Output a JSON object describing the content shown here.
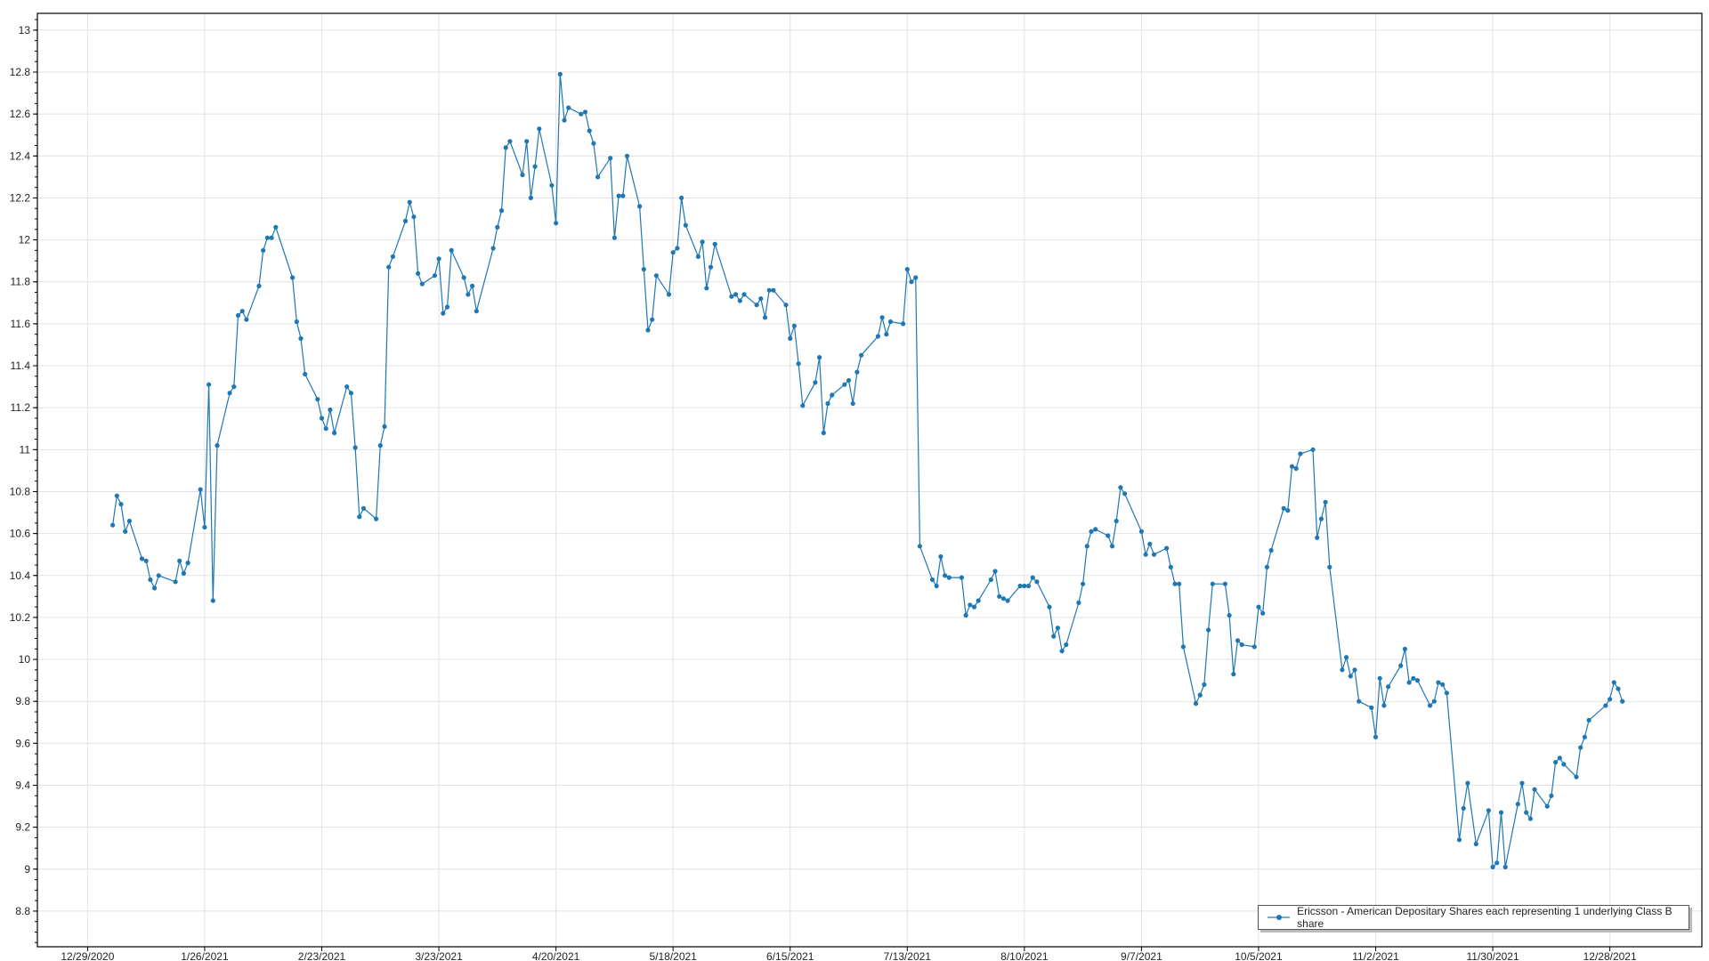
{
  "chart_data": {
    "type": "line",
    "title": "",
    "xlabel": "",
    "ylabel": "",
    "ylim": [
      8.63,
      13.08
    ],
    "xlim": [
      "2020-12-17",
      "2022-01-19"
    ],
    "grid": true,
    "legend_placement": "bottom-right",
    "line_color": "#1f77b4",
    "marker": "circle",
    "y_ticks": [
      "8.8",
      "9",
      "9.2",
      "9.4",
      "9.6",
      "9.8",
      "10",
      "10.2",
      "10.4",
      "10.6",
      "10.8",
      "11",
      "11.2",
      "11.4",
      "11.6",
      "11.8",
      "12",
      "12.2",
      "12.4",
      "12.6",
      "12.8",
      "13"
    ],
    "x_ticks": [
      "12/29/2020",
      "1/26/2021",
      "2/23/2021",
      "3/23/2021",
      "4/20/2021",
      "5/18/2021",
      "6/15/2021",
      "7/13/2021",
      "8/10/2021",
      "9/7/2021",
      "10/5/2021",
      "11/2/2021",
      "11/30/2021",
      "12/28/2021"
    ],
    "series": [
      {
        "name": "Ericsson - American Depositary Shares each representing 1 underlying Class B share",
        "x": [
          "2021-01-04",
          "2021-01-05",
          "2021-01-06",
          "2021-01-07",
          "2021-01-08",
          "2021-01-11",
          "2021-01-12",
          "2021-01-13",
          "2021-01-14",
          "2021-01-15",
          "2021-01-19",
          "2021-01-20",
          "2021-01-21",
          "2021-01-22",
          "2021-01-25",
          "2021-01-26",
          "2021-01-27",
          "2021-01-28",
          "2021-01-29",
          "2021-02-01",
          "2021-02-02",
          "2021-02-03",
          "2021-02-04",
          "2021-02-05",
          "2021-02-08",
          "2021-02-09",
          "2021-02-10",
          "2021-02-11",
          "2021-02-12",
          "2021-02-16",
          "2021-02-17",
          "2021-02-18",
          "2021-02-19",
          "2021-02-22",
          "2021-02-23",
          "2021-02-24",
          "2021-02-25",
          "2021-02-26",
          "2021-03-01",
          "2021-03-02",
          "2021-03-03",
          "2021-03-04",
          "2021-03-05",
          "2021-03-08",
          "2021-03-09",
          "2021-03-10",
          "2021-03-11",
          "2021-03-12",
          "2021-03-15",
          "2021-03-16",
          "2021-03-17",
          "2021-03-18",
          "2021-03-19",
          "2021-03-22",
          "2021-03-23",
          "2021-03-24",
          "2021-03-25",
          "2021-03-26",
          "2021-03-29",
          "2021-03-30",
          "2021-03-31",
          "2021-04-01",
          "2021-04-05",
          "2021-04-06",
          "2021-04-07",
          "2021-04-08",
          "2021-04-09",
          "2021-04-12",
          "2021-04-13",
          "2021-04-14",
          "2021-04-15",
          "2021-04-16",
          "2021-04-19",
          "2021-04-20",
          "2021-04-21",
          "2021-04-22",
          "2021-04-23",
          "2021-04-26",
          "2021-04-27",
          "2021-04-28",
          "2021-04-29",
          "2021-04-30",
          "2021-05-03",
          "2021-05-04",
          "2021-05-05",
          "2021-05-06",
          "2021-05-07",
          "2021-05-10",
          "2021-05-11",
          "2021-05-12",
          "2021-05-13",
          "2021-05-14",
          "2021-05-17",
          "2021-05-18",
          "2021-05-19",
          "2021-05-20",
          "2021-05-21",
          "2021-05-24",
          "2021-05-25",
          "2021-05-26",
          "2021-05-27",
          "2021-05-28",
          "2021-06-01",
          "2021-06-02",
          "2021-06-03",
          "2021-06-04",
          "2021-06-07",
          "2021-06-08",
          "2021-06-09",
          "2021-06-10",
          "2021-06-11",
          "2021-06-14",
          "2021-06-15",
          "2021-06-16",
          "2021-06-17",
          "2021-06-18",
          "2021-06-21",
          "2021-06-22",
          "2021-06-23",
          "2021-06-24",
          "2021-06-25",
          "2021-06-28",
          "2021-06-29",
          "2021-06-30",
          "2021-07-01",
          "2021-07-02",
          "2021-07-06",
          "2021-07-07",
          "2021-07-08",
          "2021-07-09",
          "2021-07-12",
          "2021-07-13",
          "2021-07-14",
          "2021-07-15",
          "2021-07-16",
          "2021-07-19",
          "2021-07-20",
          "2021-07-21",
          "2021-07-22",
          "2021-07-23",
          "2021-07-26",
          "2021-07-27",
          "2021-07-28",
          "2021-07-29",
          "2021-07-30",
          "2021-08-02",
          "2021-08-03",
          "2021-08-04",
          "2021-08-05",
          "2021-08-06",
          "2021-08-09",
          "2021-08-10",
          "2021-08-11",
          "2021-08-12",
          "2021-08-13",
          "2021-08-16",
          "2021-08-17",
          "2021-08-18",
          "2021-08-19",
          "2021-08-20",
          "2021-08-23",
          "2021-08-24",
          "2021-08-25",
          "2021-08-26",
          "2021-08-27",
          "2021-08-30",
          "2021-08-31",
          "2021-09-01",
          "2021-09-02",
          "2021-09-03",
          "2021-09-07",
          "2021-09-08",
          "2021-09-09",
          "2021-09-10",
          "2021-09-13",
          "2021-09-14",
          "2021-09-15",
          "2021-09-16",
          "2021-09-17",
          "2021-09-20",
          "2021-09-21",
          "2021-09-22",
          "2021-09-23",
          "2021-09-24",
          "2021-09-27",
          "2021-09-28",
          "2021-09-29",
          "2021-09-30",
          "2021-10-01",
          "2021-10-04",
          "2021-10-05",
          "2021-10-06",
          "2021-10-07",
          "2021-10-08",
          "2021-10-11",
          "2021-10-12",
          "2021-10-13",
          "2021-10-14",
          "2021-10-15",
          "2021-10-18",
          "2021-10-19",
          "2021-10-20",
          "2021-10-21",
          "2021-10-22",
          "2021-10-25",
          "2021-10-26",
          "2021-10-27",
          "2021-10-28",
          "2021-10-29",
          "2021-11-01",
          "2021-11-02",
          "2021-11-03",
          "2021-11-04",
          "2021-11-05",
          "2021-11-08",
          "2021-11-09",
          "2021-11-10",
          "2021-11-11",
          "2021-11-12",
          "2021-11-15",
          "2021-11-16",
          "2021-11-17",
          "2021-11-18",
          "2021-11-19",
          "2021-11-22",
          "2021-11-23",
          "2021-11-24",
          "2021-11-26",
          "2021-11-29",
          "2021-11-30",
          "2021-12-01",
          "2021-12-02",
          "2021-12-03",
          "2021-12-06",
          "2021-12-07",
          "2021-12-08",
          "2021-12-09",
          "2021-12-10",
          "2021-12-13",
          "2021-12-14",
          "2021-12-15",
          "2021-12-16",
          "2021-12-17",
          "2021-12-20",
          "2021-12-21",
          "2021-12-22",
          "2021-12-23",
          "2021-12-27",
          "2021-12-28",
          "2021-12-29",
          "2021-12-30",
          "2021-12-31"
        ],
        "y": [
          10.64,
          10.78,
          10.74,
          10.61,
          10.66,
          10.48,
          10.47,
          10.38,
          10.34,
          10.4,
          10.37,
          10.47,
          10.41,
          10.46,
          10.81,
          10.63,
          11.31,
          10.28,
          11.02,
          11.27,
          11.3,
          11.64,
          11.66,
          11.62,
          11.78,
          11.95,
          12.01,
          12.01,
          12.06,
          11.82,
          11.61,
          11.53,
          11.36,
          11.24,
          11.15,
          11.1,
          11.19,
          11.08,
          11.3,
          11.27,
          11.01,
          10.68,
          10.72,
          10.67,
          11.02,
          11.11,
          11.87,
          11.92,
          12.09,
          12.18,
          12.11,
          11.84,
          11.79,
          11.83,
          11.91,
          11.65,
          11.68,
          11.95,
          11.82,
          11.74,
          11.78,
          11.66,
          11.96,
          12.06,
          12.14,
          12.44,
          12.47,
          12.31,
          12.47,
          12.2,
          12.35,
          12.53,
          12.26,
          12.08,
          12.79,
          12.57,
          12.63,
          12.6,
          12.61,
          12.52,
          12.46,
          12.3,
          12.39,
          12.01,
          12.21,
          12.21,
          12.4,
          12.16,
          11.86,
          11.57,
          11.62,
          11.83,
          11.74,
          11.94,
          11.96,
          12.2,
          12.07,
          11.92,
          11.99,
          11.77,
          11.87,
          11.98,
          11.73,
          11.74,
          11.71,
          11.74,
          11.69,
          11.72,
          11.63,
          11.76,
          11.76,
          11.69,
          11.53,
          11.59,
          11.41,
          11.21,
          11.32,
          11.44,
          11.08,
          11.22,
          11.26,
          11.31,
          11.33,
          11.22,
          11.37,
          11.45,
          11.54,
          11.63,
          11.55,
          11.61,
          11.6,
          11.86,
          11.8,
          11.82,
          10.54,
          10.38,
          10.35,
          10.49,
          10.4,
          10.39,
          10.39,
          10.21,
          10.26,
          10.25,
          10.28,
          10.38,
          10.42,
          10.3,
          10.29,
          10.28,
          10.35,
          10.35,
          10.35,
          10.39,
          10.37,
          10.25,
          10.11,
          10.15,
          10.04,
          10.07,
          10.27,
          10.36,
          10.54,
          10.61,
          10.62,
          10.59,
          10.54,
          10.66,
          10.82,
          10.79,
          10.61,
          10.5,
          10.55,
          10.5,
          10.53,
          10.44,
          10.36,
          10.36,
          10.06,
          9.79,
          9.83,
          9.88,
          10.14,
          10.36,
          10.36,
          10.21,
          9.93,
          10.09,
          10.07,
          10.06,
          10.25,
          10.22,
          10.44,
          10.52,
          10.72,
          10.71,
          10.92,
          10.91,
          10.98,
          11.0,
          10.58,
          10.67,
          10.75,
          10.44,
          9.95,
          10.01,
          9.92,
          9.95,
          9.8,
          9.77,
          9.63,
          9.91,
          9.78,
          9.87,
          9.97,
          10.05,
          9.89,
          9.91,
          9.9,
          9.78,
          9.8,
          9.89,
          9.88,
          9.84,
          9.14,
          9.29,
          9.41,
          9.12,
          9.28,
          9.01,
          9.03,
          9.27,
          9.01,
          9.31,
          9.41,
          9.27,
          9.24,
          9.38,
          9.3,
          9.35,
          9.51,
          9.53,
          9.5,
          9.44,
          9.58,
          9.63,
          9.71,
          9.78,
          9.81,
          9.89,
          9.86,
          9.8
        ]
      }
    ]
  }
}
